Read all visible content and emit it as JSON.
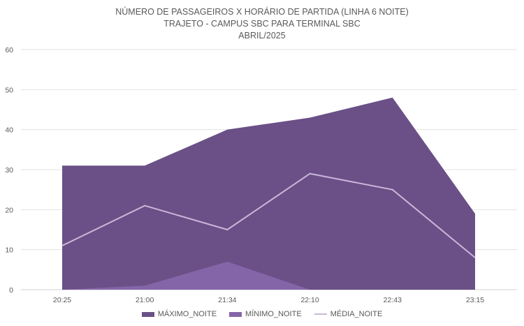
{
  "chart_data": {
    "type": "area",
    "title_lines": [
      "NÚMERO DE PASSAGEIROS X HORÁRIO DE PARTIDA (LINHA 6 NOITE)",
      "TRAJETO - CAMPUS SBC PARA TERMINAL SBC",
      "ABRIL/2025"
    ],
    "categories": [
      "20:25",
      "21:00",
      "21:34",
      "22:10",
      "22:43",
      "23:15"
    ],
    "series": [
      {
        "name": "MÁXIMO_NOITE",
        "type": "area",
        "values": [
          31,
          31,
          40,
          43,
          48,
          19
        ],
        "color": "#6a5087"
      },
      {
        "name": "MÍNIMO_NOITE",
        "type": "area",
        "values": [
          0,
          1,
          7,
          0,
          0,
          0
        ],
        "color": "#8466a8"
      },
      {
        "name": "MÉDIA_NOITE",
        "type": "line",
        "values": [
          11,
          21,
          15,
          29,
          25,
          8
        ],
        "color": "#c9b6d9"
      }
    ],
    "ylim": [
      0,
      60
    ],
    "yticks": [
      0,
      10,
      20,
      30,
      40,
      50,
      60
    ],
    "grid": true,
    "legend_position": "bottom"
  }
}
